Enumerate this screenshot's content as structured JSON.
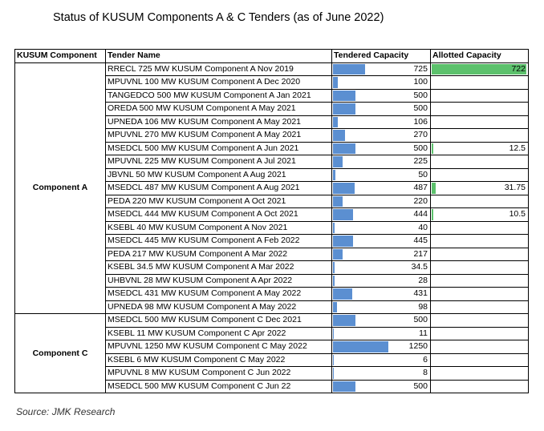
{
  "title": "Status of KUSUM Components A & C Tenders (as of June 2022)",
  "source": "Source: JMK Research",
  "colors": {
    "tendered_bar": "#5b8fd1",
    "allotted_bar": "#5cc16c"
  },
  "chart_data": {
    "type": "table",
    "columns": [
      "KUSUM Component",
      "Tender Name",
      "Tendered Capacity",
      "Allotted Capacity"
    ],
    "tendered_max": 1250,
    "allotted_max": 722,
    "groups": [
      {
        "component": "Component A",
        "rows": [
          {
            "tender": "RRECL 725 MW KUSUM Component A Nov 2019",
            "tendered": 725,
            "tendered_label": "725",
            "allotted": 722,
            "allotted_label": "722"
          },
          {
            "tender": "MPUVNL 100 MW KUSUM Component A Dec 2020",
            "tendered": 100,
            "tendered_label": "100",
            "allotted": null,
            "allotted_label": ""
          },
          {
            "tender": "TANGEDCO 500 MW KUSUM Component A Jan 2021",
            "tendered": 500,
            "tendered_label": "500",
            "allotted": null,
            "allotted_label": ""
          },
          {
            "tender": "OREDA 500 MW KUSUM Component A May 2021",
            "tendered": 500,
            "tendered_label": "500",
            "allotted": null,
            "allotted_label": ""
          },
          {
            "tender": "UPNEDA 106 MW KUSUM Component A May 2021",
            "tendered": 106,
            "tendered_label": "106",
            "allotted": null,
            "allotted_label": ""
          },
          {
            "tender": "MPUVNL 270 MW KUSUM Component A May 2021",
            "tendered": 270,
            "tendered_label": "270",
            "allotted": null,
            "allotted_label": ""
          },
          {
            "tender": "MSEDCL 500 MW KUSUM Component A Jun 2021",
            "tendered": 500,
            "tendered_label": "500",
            "allotted": 12.5,
            "allotted_label": "12.5"
          },
          {
            "tender": "MPUVNL 225 MW KUSUM Component A Jul 2021",
            "tendered": 225,
            "tendered_label": "225",
            "allotted": null,
            "allotted_label": ""
          },
          {
            "tender": "JBVNL 50 MW KUSUM Component A Aug 2021",
            "tendered": 50,
            "tendered_label": "50",
            "allotted": null,
            "allotted_label": ""
          },
          {
            "tender": "MSEDCL 487 MW KUSUM Component A Aug 2021",
            "tendered": 487,
            "tendered_label": "487",
            "allotted": 31.75,
            "allotted_label": "31.75"
          },
          {
            "tender": "PEDA 220 MW KUSUM Component A Oct 2021",
            "tendered": 220,
            "tendered_label": "220",
            "allotted": null,
            "allotted_label": ""
          },
          {
            "tender": "MSEDCL 444 MW KUSUM Component A Oct 2021",
            "tendered": 444,
            "tendered_label": "444",
            "allotted": 10.5,
            "allotted_label": "10.5"
          },
          {
            "tender": "KSEBL 40 MW KUSUM Component A Nov 2021",
            "tendered": 40,
            "tendered_label": "40",
            "allotted": null,
            "allotted_label": ""
          },
          {
            "tender": "MSEDCL 445 MW KUSUM Component A Feb 2022",
            "tendered": 445,
            "tendered_label": "445",
            "allotted": null,
            "allotted_label": ""
          },
          {
            "tender": "PEDA 217 MW KUSUM Component A Mar 2022",
            "tendered": 217,
            "tendered_label": "217",
            "allotted": null,
            "allotted_label": ""
          },
          {
            "tender": "KSEBL 34.5 MW KUSUM Component A Mar 2022",
            "tendered": 34.5,
            "tendered_label": "34.5",
            "allotted": null,
            "allotted_label": ""
          },
          {
            "tender": "UHBVNL 28 MW KUSUM Component A Apr 2022",
            "tendered": 28,
            "tendered_label": "28",
            "allotted": null,
            "allotted_label": ""
          },
          {
            "tender": "MSEDCL 431 MW KUSUM Component A May 2022",
            "tendered": 431,
            "tendered_label": "431",
            "allotted": null,
            "allotted_label": ""
          },
          {
            "tender": "UPNEDA 98 MW  KUSUM Component A May 2022",
            "tendered": 98,
            "tendered_label": "98",
            "allotted": null,
            "allotted_label": ""
          }
        ]
      },
      {
        "component": "Component C",
        "rows": [
          {
            "tender": "MSEDCL 500 MW KUSUM Component C Dec 2021",
            "tendered": 500,
            "tendered_label": "500",
            "allotted": null,
            "allotted_label": ""
          },
          {
            "tender": "KSEBL 11 MW KUSUM Component C Apr 2022",
            "tendered": 11,
            "tendered_label": "11",
            "allotted": null,
            "allotted_label": ""
          },
          {
            "tender": "MPUVNL 1250 MW KUSUM Component C May 2022",
            "tendered": 1250,
            "tendered_label": "1250",
            "allotted": null,
            "allotted_label": ""
          },
          {
            "tender": "KSEBL 6 MW KUSUM Component C May 2022",
            "tendered": 6,
            "tendered_label": "6",
            "allotted": null,
            "allotted_label": ""
          },
          {
            "tender": "MPUVNL 8 MW KUSUM Component C Jun 2022",
            "tendered": 8,
            "tendered_label": "8",
            "allotted": null,
            "allotted_label": ""
          },
          {
            "tender": "MSEDCL 500 MW KUSUM Component C Jun 22",
            "tendered": 500,
            "tendered_label": "500",
            "allotted": null,
            "allotted_label": ""
          }
        ]
      }
    ]
  }
}
